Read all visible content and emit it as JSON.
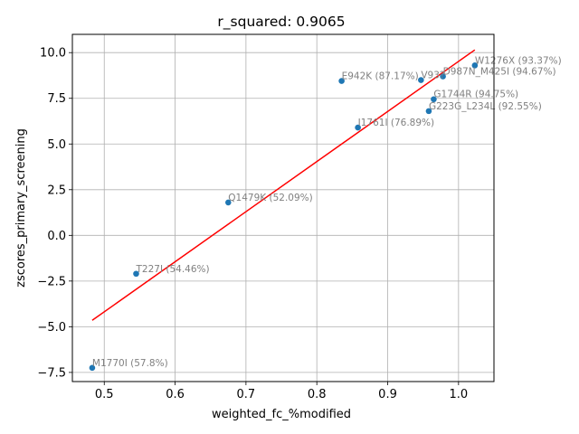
{
  "chart_data": {
    "type": "scatter",
    "title": "r_squared: 0.9065",
    "xlabel": "weighted_fc_%modified",
    "ylabel": "zscores_primary_screening",
    "xlim": [
      0.455,
      1.05
    ],
    "ylim": [
      -8.0,
      11.0
    ],
    "xticks": [
      "0.5",
      "0.6",
      "0.7",
      "0.8",
      "0.9",
      "1.0"
    ],
    "yticks": [
      "−7.5",
      "−5.0",
      "−2.5",
      "0.0",
      "2.5",
      "5.0",
      "7.5",
      "10.0"
    ],
    "xtick_values": [
      0.5,
      0.6,
      0.7,
      0.8,
      0.9,
      1.0
    ],
    "ytick_values": [
      -7.5,
      -5.0,
      -2.5,
      0.0,
      2.5,
      5.0,
      7.5,
      10.0
    ],
    "grid": true,
    "point_color": "#1f77b4",
    "fit_color": "#ff0000",
    "points": [
      {
        "x": 0.483,
        "y": -7.25,
        "label": "M1770I (57.8%)"
      },
      {
        "x": 0.545,
        "y": -2.1,
        "label": "T227I (54.46%)"
      },
      {
        "x": 0.675,
        "y": 1.8,
        "label": "Q1479K (52.09%)"
      },
      {
        "x": 0.835,
        "y": 8.45,
        "label": "E942K (87.17%)"
      },
      {
        "x": 0.858,
        "y": 5.9,
        "label": "I1761I (76.89%)"
      },
      {
        "x": 0.947,
        "y": 8.5,
        "label": "V93?"
      },
      {
        "x": 0.958,
        "y": 6.8,
        "label": "G223G_L234L (92.55%)"
      },
      {
        "x": 0.965,
        "y": 7.45,
        "label": "G1744R (94.75%)"
      },
      {
        "x": 0.978,
        "y": 8.7,
        "label": "D987N_M425I (94.67%)"
      },
      {
        "x": 1.023,
        "y": 9.3,
        "label": "W1276X (93.37%)"
      }
    ],
    "fit_line": {
      "x0": 0.483,
      "y0": -4.65,
      "x1": 1.023,
      "y1": 10.15
    }
  }
}
